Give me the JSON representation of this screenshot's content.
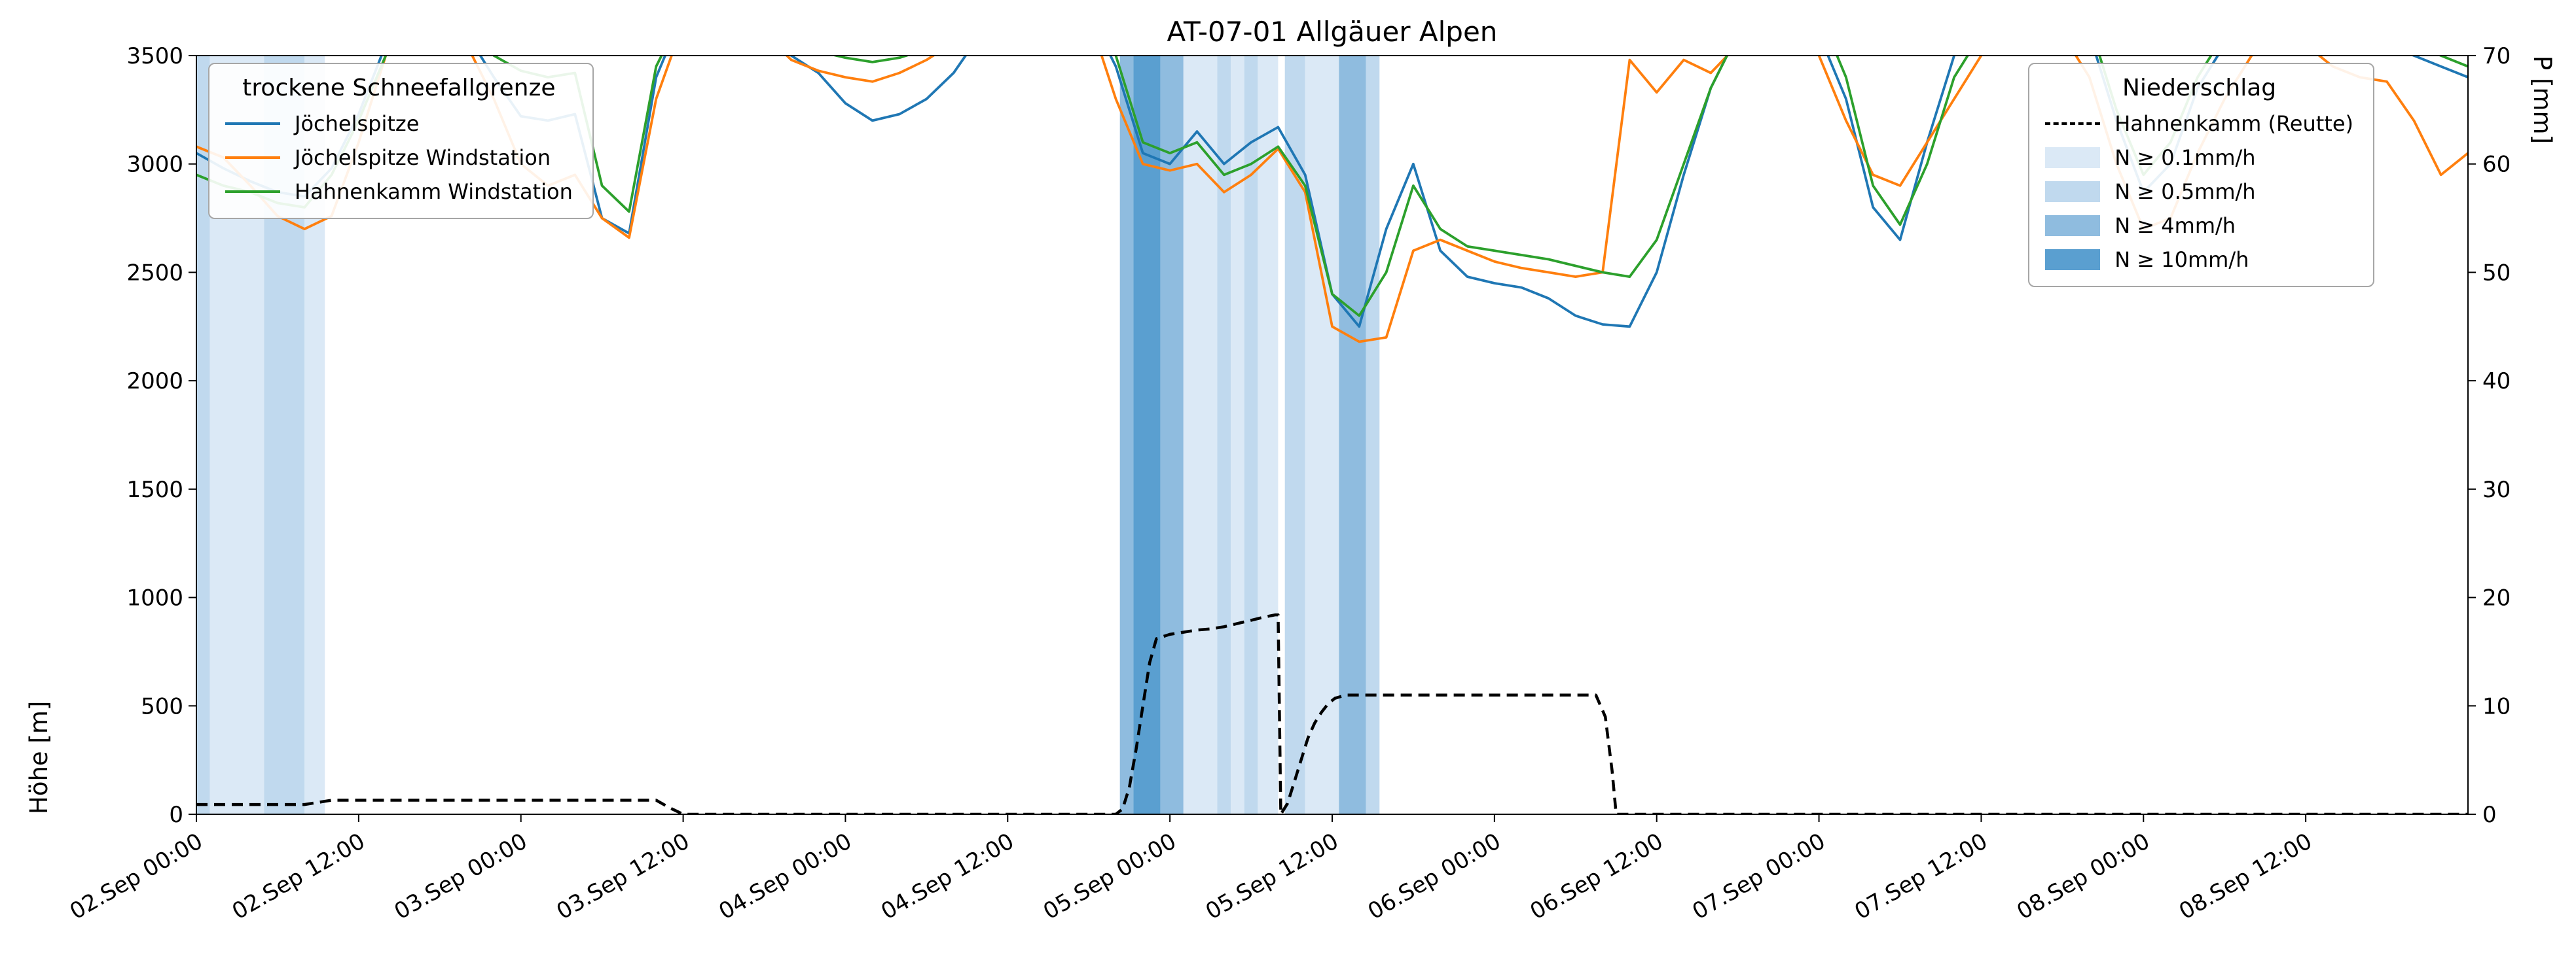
{
  "chart_data": {
    "type": "line",
    "title": "AT-07-01 Allgäuer Alpen",
    "x_axis": {
      "unit": "datetime",
      "range_hours": [
        0,
        168
      ],
      "range_note": "02.Sep 00:00 through 09.Sep 00:00",
      "tick_hours": [
        0,
        12,
        24,
        36,
        48,
        60,
        72,
        84,
        96,
        108,
        120,
        132,
        144,
        156
      ],
      "tick_labels": [
        "02.Sep 00:00",
        "02.Sep 12:00",
        "03.Sep 00:00",
        "03.Sep 12:00",
        "04.Sep 00:00",
        "04.Sep 12:00",
        "05.Sep 00:00",
        "05.Sep 12:00",
        "06.Sep 00:00",
        "06.Sep 12:00",
        "07.Sep 00:00",
        "07.Sep 12:00",
        "08.Sep 00:00",
        "08.Sep 12:00"
      ]
    },
    "y_left": {
      "label": "Höhe [m]",
      "range": [
        0,
        3500
      ],
      "ticks": [
        0,
        500,
        1000,
        1500,
        2000,
        2500,
        3000,
        3500
      ]
    },
    "y_right": {
      "label": "P [mm]",
      "range": [
        0,
        70
      ],
      "ticks": [
        0,
        10,
        20,
        30,
        40,
        50,
        60,
        70
      ]
    },
    "grid": false,
    "x_hours": [
      0,
      2,
      4,
      6,
      8,
      10,
      12,
      14,
      16,
      18,
      20,
      22,
      24,
      26,
      28,
      30,
      32,
      34,
      36,
      38,
      40,
      42,
      44,
      46,
      48,
      50,
      52,
      54,
      56,
      58,
      60,
      62,
      64,
      66,
      68,
      70,
      72,
      74,
      76,
      78,
      80,
      82,
      84,
      86,
      88,
      90,
      92,
      94,
      96,
      98,
      100,
      102,
      104,
      106,
      108,
      110,
      112,
      114,
      116,
      118,
      120,
      122,
      124,
      126,
      128,
      130,
      132,
      134,
      136,
      138,
      140,
      142,
      144,
      146,
      148,
      150,
      152,
      154,
      156,
      158,
      160,
      162,
      164,
      166,
      168
    ],
    "series": [
      {
        "name": "Jöchelspitze",
        "axis": "left",
        "style": "solid",
        "color": "#1f77b4",
        "values": [
          3050,
          2980,
          2920,
          2870,
          2850,
          2980,
          3230,
          3550,
          3700,
          3700,
          3600,
          3400,
          3220,
          3200,
          3230,
          2750,
          2680,
          3400,
          3700,
          3700,
          3700,
          3650,
          3500,
          3420,
          3280,
          3200,
          3230,
          3300,
          3420,
          3600,
          3700,
          3700,
          3700,
          3700,
          3450,
          3050,
          3000,
          3150,
          3000,
          3100,
          3170,
          2950,
          2400,
          2250,
          2700,
          3000,
          2600,
          2480,
          2450,
          2430,
          2380,
          2300,
          2260,
          2250,
          2500,
          2950,
          3350,
          3600,
          3700,
          3700,
          3600,
          3300,
          2800,
          2650,
          3100,
          3500,
          3650,
          3650,
          3700,
          3700,
          3600,
          3200,
          2870,
          3000,
          3350,
          3550,
          3700,
          3700,
          3700,
          3680,
          3600,
          3550,
          3500,
          3450,
          3400
        ]
      },
      {
        "name": "Jöchelspitze Windstation",
        "axis": "left",
        "style": "solid",
        "color": "#ff7f0e",
        "values": [
          3080,
          3030,
          2900,
          2760,
          2700,
          2760,
          3100,
          3500,
          3650,
          3700,
          3550,
          3300,
          3000,
          2900,
          2950,
          2750,
          2660,
          3300,
          3650,
          3700,
          3700,
          3600,
          3480,
          3430,
          3400,
          3380,
          3420,
          3480,
          3560,
          3650,
          3700,
          3700,
          3700,
          3680,
          3300,
          3000,
          2970,
          3000,
          2870,
          2950,
          3070,
          2870,
          2250,
          2180,
          2200,
          2600,
          2650,
          2600,
          2550,
          2520,
          2500,
          2480,
          2500,
          3480,
          3330,
          3480,
          3420,
          3550,
          3700,
          3600,
          3500,
          3200,
          2950,
          2900,
          3100,
          3300,
          3500,
          3600,
          3650,
          3600,
          3400,
          3000,
          2700,
          2750,
          3050,
          3300,
          3500,
          3650,
          3550,
          3450,
          3400,
          3380,
          3200,
          2950,
          3050
        ]
      },
      {
        "name": "Hahnenkamm Windstation",
        "axis": "left",
        "style": "solid",
        "color": "#2ca02c",
        "values": [
          2950,
          2900,
          2870,
          2820,
          2800,
          2950,
          3200,
          3500,
          3650,
          3700,
          3650,
          3500,
          3430,
          3400,
          3420,
          2900,
          2780,
          3450,
          3700,
          3700,
          3700,
          3680,
          3580,
          3520,
          3490,
          3470,
          3490,
          3530,
          3600,
          3650,
          3700,
          3700,
          3700,
          3700,
          3500,
          3100,
          3050,
          3100,
          2950,
          3000,
          3080,
          2900,
          2400,
          2300,
          2500,
          2900,
          2700,
          2620,
          2600,
          2580,
          2560,
          2530,
          2500,
          2480,
          2650,
          3000,
          3350,
          3600,
          3700,
          3700,
          3700,
          3400,
          2900,
          2720,
          3000,
          3400,
          3600,
          3650,
          3700,
          3700,
          3650,
          3250,
          2950,
          3100,
          3400,
          3600,
          3700,
          3700,
          3700,
          3700,
          3650,
          3600,
          3550,
          3500,
          3450
        ]
      },
      {
        "name": "Hahnenkamm (Reutte)",
        "axis": "right",
        "style": "dashed",
        "color": "#000000",
        "points": [
          [
            0,
            0.9
          ],
          [
            8,
            0.9
          ],
          [
            9,
            1.1
          ],
          [
            10,
            1.3
          ],
          [
            34,
            1.3
          ],
          [
            35,
            0.6
          ],
          [
            36,
            0
          ],
          [
            68,
            0
          ],
          [
            68.5,
            0.5
          ],
          [
            69,
            2.5
          ],
          [
            69.5,
            6
          ],
          [
            70,
            10
          ],
          [
            70.5,
            14
          ],
          [
            71,
            16.2
          ],
          [
            72,
            16.6
          ],
          [
            73,
            16.8
          ],
          [
            74,
            17.0
          ],
          [
            75,
            17.1
          ],
          [
            76,
            17.3
          ],
          [
            77,
            17.6
          ],
          [
            78,
            17.9
          ],
          [
            79,
            18.2
          ],
          [
            79.8,
            18.4
          ],
          [
            80,
            18.4
          ],
          [
            80.2,
            0
          ],
          [
            80.7,
            1
          ],
          [
            81.2,
            3
          ],
          [
            81.7,
            5
          ],
          [
            82.2,
            7
          ],
          [
            82.7,
            8.4
          ],
          [
            83.2,
            9.4
          ],
          [
            83.7,
            10.2
          ],
          [
            84.2,
            10.7
          ],
          [
            85,
            11
          ],
          [
            103.5,
            11
          ],
          [
            104.2,
            9
          ],
          [
            104.7,
            4
          ],
          [
            105,
            0
          ],
          [
            168,
            0
          ]
        ]
      }
    ],
    "band_colors": {
      "0.1": "#dbe9f6",
      "0.5": "#c0d9ee",
      "4": "#8fbcdf",
      "10": "#5a9fd0"
    },
    "precip_bands": [
      {
        "start": 0,
        "end": 1,
        "level": "0.5"
      },
      {
        "start": 1,
        "end": 5,
        "level": "0.1"
      },
      {
        "start": 5,
        "end": 8,
        "level": "0.5"
      },
      {
        "start": 8,
        "end": 9.5,
        "level": "0.1"
      },
      {
        "start": 68.3,
        "end": 69.3,
        "level": "4"
      },
      {
        "start": 69.3,
        "end": 71.3,
        "level": "10"
      },
      {
        "start": 71.3,
        "end": 73,
        "level": "4"
      },
      {
        "start": 73,
        "end": 75.5,
        "level": "0.1"
      },
      {
        "start": 75.5,
        "end": 76.5,
        "level": "0.5"
      },
      {
        "start": 76.5,
        "end": 77.5,
        "level": "0.1"
      },
      {
        "start": 77.5,
        "end": 78.5,
        "level": "0.5"
      },
      {
        "start": 78.5,
        "end": 80,
        "level": "0.1"
      },
      {
        "start": 80.5,
        "end": 82,
        "level": "0.5"
      },
      {
        "start": 82,
        "end": 84.5,
        "level": "0.1"
      },
      {
        "start": 84.5,
        "end": 86.5,
        "level": "4"
      },
      {
        "start": 86.5,
        "end": 87.5,
        "level": "0.5"
      }
    ],
    "legend_left": {
      "title": "trockene Schneefallgrenze",
      "entries": [
        {
          "label": "Jöchelspitze",
          "color": "#1f77b4"
        },
        {
          "label": "Jöchelspitze Windstation",
          "color": "#ff7f0e"
        },
        {
          "label": "Hahnenkamm Windstation",
          "color": "#2ca02c"
        }
      ]
    },
    "legend_right": {
      "title": "Niederschlag",
      "entries": [
        {
          "label": "Hahnenkamm (Reutte)",
          "type": "dashed-line",
          "color": "#000000"
        },
        {
          "label": "N ≥ 0.1mm/h",
          "type": "patch",
          "level": "0.1"
        },
        {
          "label": "N ≥ 0.5mm/h",
          "type": "patch",
          "level": "0.5"
        },
        {
          "label": "N ≥ 4mm/h",
          "type": "patch",
          "level": "4"
        },
        {
          "label": "N ≥ 10mm/h",
          "type": "patch",
          "level": "10"
        }
      ]
    }
  }
}
